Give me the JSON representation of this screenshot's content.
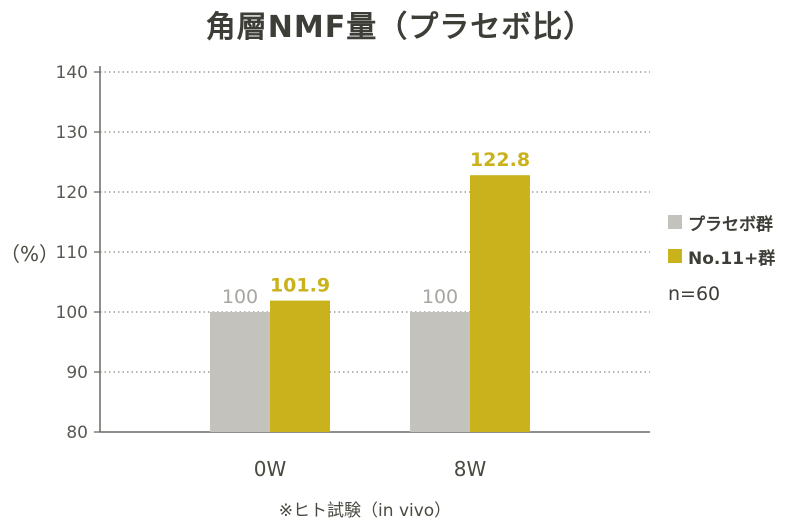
{
  "chart_data": {
    "type": "bar",
    "title": "角層NMF量（プラセボ比）",
    "ylabel": "（%）",
    "xlabel": "",
    "ylim": [
      80,
      140
    ],
    "yticks": [
      80,
      90,
      100,
      110,
      120,
      130,
      140
    ],
    "categories": [
      "0W",
      "8W"
    ],
    "series": [
      {
        "name": "プラセボ群",
        "values": [
          100,
          100
        ],
        "color": "#c4c2bd",
        "label_color": "#a8a6a0"
      },
      {
        "name": "No.11+群",
        "values": [
          101.9,
          122.8
        ],
        "color": "#c9b21c",
        "label_color": "#c9b21c"
      }
    ],
    "grid": true,
    "legend": "right",
    "legend_note": "n=60",
    "footnote": "※ヒト試験（in vivo）"
  }
}
